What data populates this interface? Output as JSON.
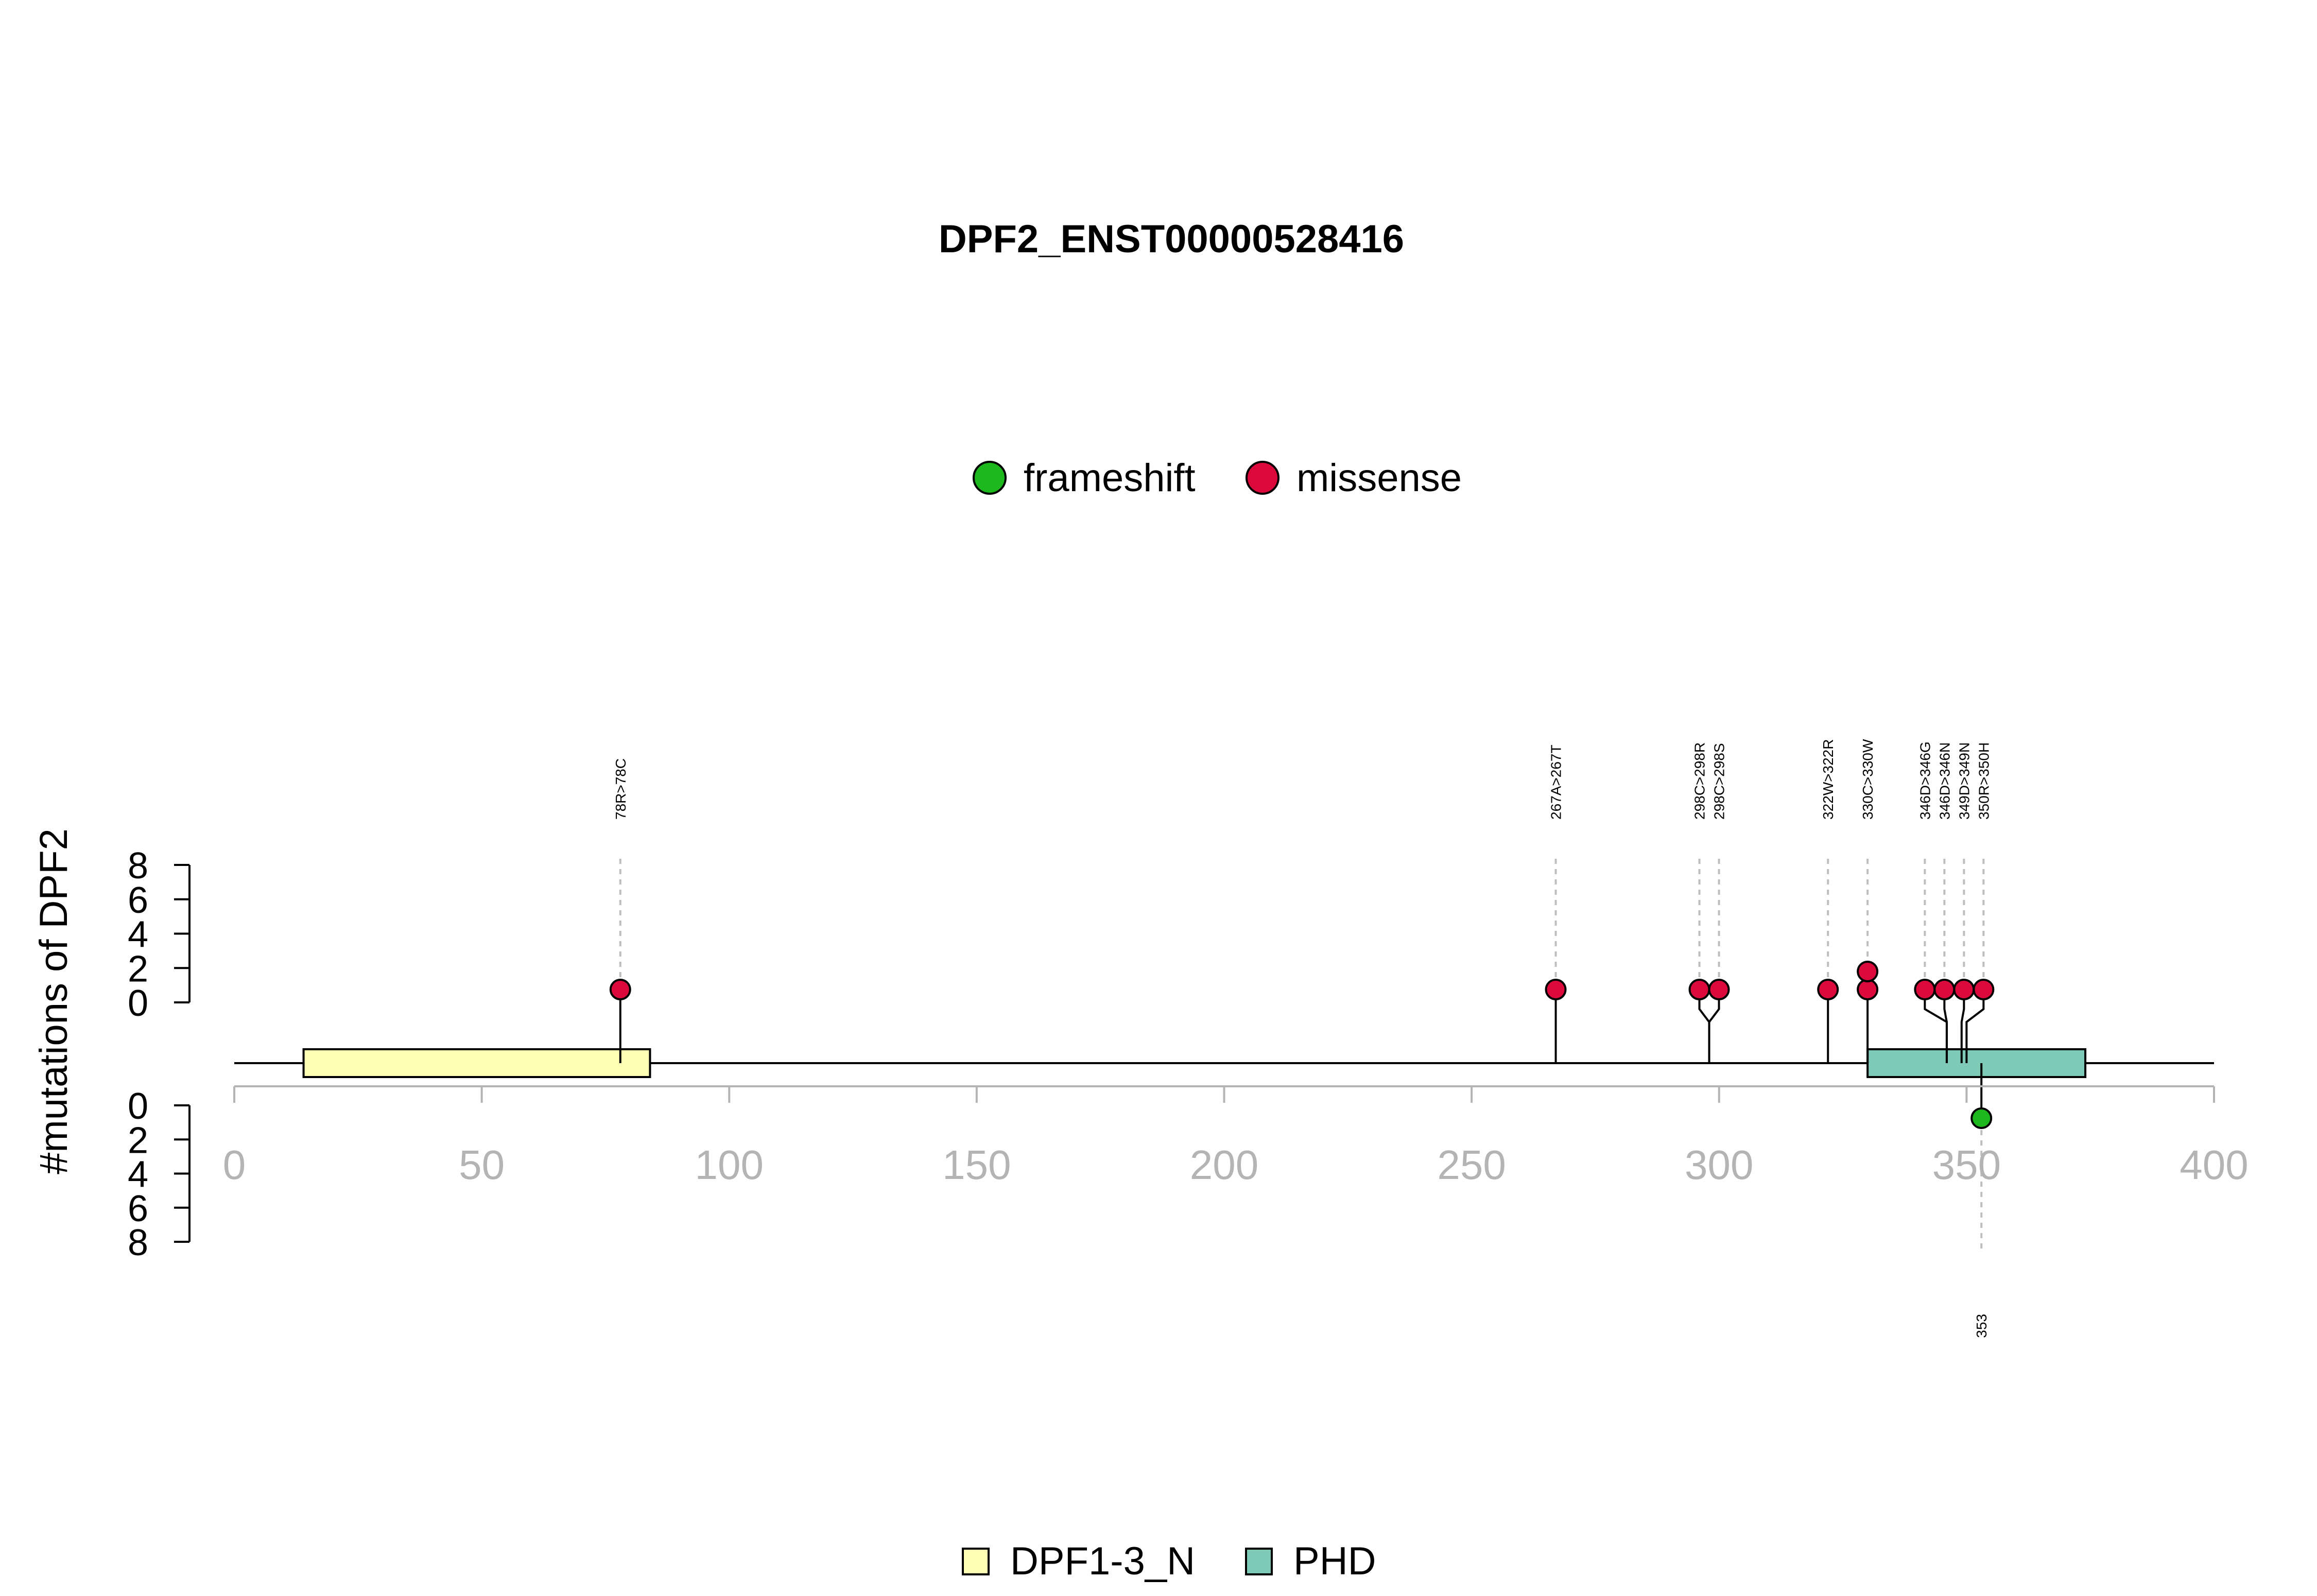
{
  "chart_data": {
    "type": "lollipop",
    "title": "DPF2_ENST00000528416",
    "ylabel": "#mutations of DPF2",
    "xlim": [
      0,
      400
    ],
    "x_ticks": [
      0,
      50,
      100,
      150,
      200,
      250,
      300,
      350,
      400
    ],
    "y_ticks": [
      0,
      2,
      4,
      6,
      8
    ],
    "ylim": [
      0,
      8
    ],
    "legend_mutation": [
      {
        "label": "frameshift",
        "color": "#1DB81D"
      },
      {
        "label": "missense",
        "color": "#DC0A3C"
      }
    ],
    "legend_domain": [
      {
        "label": "DPF1-3_N",
        "color": "#FFFFB3"
      },
      {
        "label": "PHD",
        "color": "#7FC9B7"
      }
    ],
    "domains": [
      {
        "name": "DPF1-3_N",
        "start": 14,
        "end": 84,
        "color": "#FFFFB3"
      },
      {
        "name": "PHD",
        "start": 330,
        "end": 374,
        "color": "#7FC9B7"
      }
    ],
    "top_mutations": [
      {
        "label": "78R>78C",
        "pos": 78,
        "count": 1,
        "type": "missense"
      },
      {
        "label": "267A>267T",
        "pos": 267,
        "count": 1,
        "type": "missense"
      },
      {
        "label": "298C>298R",
        "pos": 298,
        "count": 1,
        "type": "missense"
      },
      {
        "label": "298C>298S",
        "pos": 298,
        "count": 1,
        "type": "missense"
      },
      {
        "label": "322W>322R",
        "pos": 322,
        "count": 1,
        "type": "missense"
      },
      {
        "label": "330C>330W",
        "pos": 330,
        "count": 2,
        "type": "missense"
      },
      {
        "label": "346D>346G",
        "pos": 346,
        "count": 1,
        "type": "missense"
      },
      {
        "label": "346D>346N",
        "pos": 346,
        "count": 1,
        "type": "missense"
      },
      {
        "label": "349D>349N",
        "pos": 349,
        "count": 1,
        "type": "missense"
      },
      {
        "label": "350R>350H",
        "pos": 350,
        "count": 1,
        "type": "missense"
      }
    ],
    "bottom_mutations": [
      {
        "label": "353",
        "pos": 353,
        "count": 1,
        "type": "frameshift"
      }
    ],
    "colors": {
      "missense": "#DC0A3C",
      "frameshift": "#1DB81D",
      "axis_grey": "#B4B4B4",
      "guide_grey": "#BEBEBE"
    }
  }
}
